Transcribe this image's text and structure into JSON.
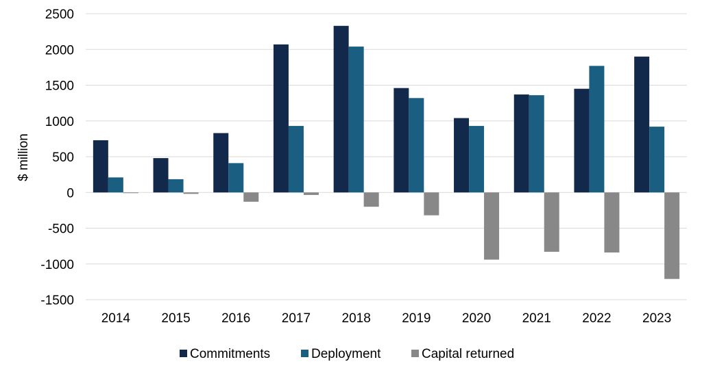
{
  "chart_data": {
    "type": "bar",
    "title": "",
    "xlabel": "",
    "ylabel": "$ million",
    "ylim": [
      -1500,
      2500
    ],
    "yticks": [
      2500,
      2000,
      1500,
      1000,
      500,
      0,
      -500,
      -1000,
      -1500
    ],
    "grid": true,
    "legend_position": "bottom",
    "categories": [
      "2014",
      "2015",
      "2016",
      "2017",
      "2018",
      "2019",
      "2020",
      "2021",
      "2022",
      "2023"
    ],
    "series": [
      {
        "name": "Commitments",
        "color": "#13294b",
        "values": [
          730,
          480,
          830,
          2070,
          2330,
          1460,
          1040,
          1370,
          1450,
          1900
        ]
      },
      {
        "name": "Deployment",
        "color": "#1a5f82",
        "values": [
          210,
          185,
          410,
          930,
          2040,
          1320,
          930,
          1360,
          1770,
          920
        ]
      },
      {
        "name": "Capital returned",
        "color": "#888888",
        "values": [
          -10,
          -20,
          -130,
          -35,
          -200,
          -320,
          -940,
          -830,
          -840,
          -1210
        ]
      }
    ]
  }
}
